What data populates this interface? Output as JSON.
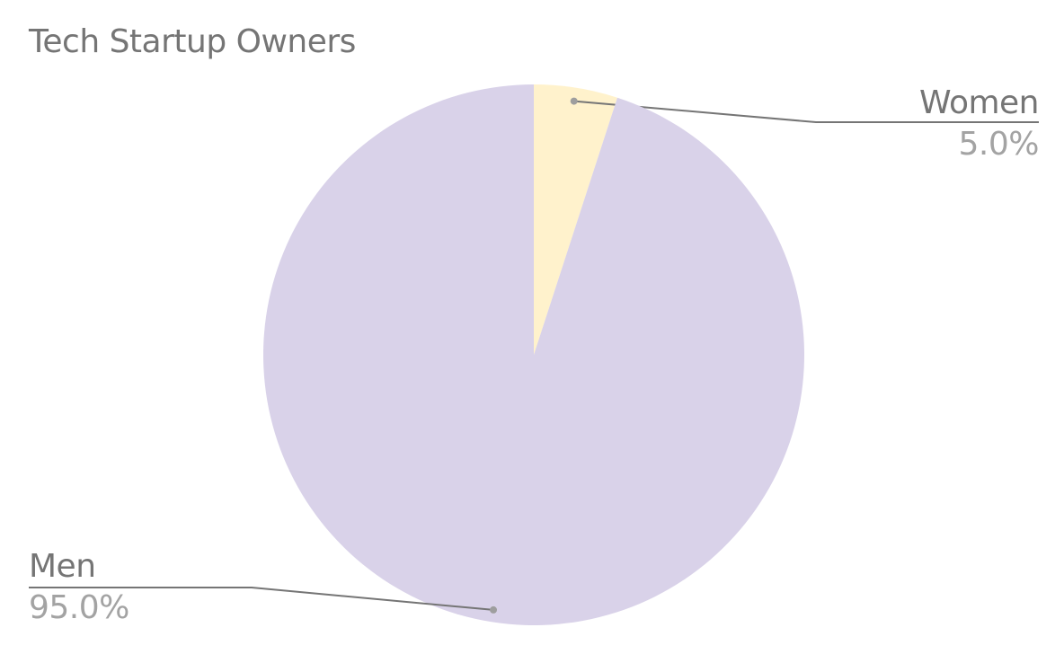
{
  "chart_data": {
    "type": "pie",
    "title": "Tech Startup Owners",
    "slices": [
      {
        "label": "Women",
        "value": 5.0,
        "display": "5.0%",
        "color": "#fff2cc"
      },
      {
        "label": "Men",
        "value": 95.0,
        "display": "95.0%",
        "color": "#d9d2e9"
      }
    ],
    "start_angle_deg": 0,
    "direction": "clockwise",
    "label_style": "outside with leader lines",
    "legend": "none"
  }
}
